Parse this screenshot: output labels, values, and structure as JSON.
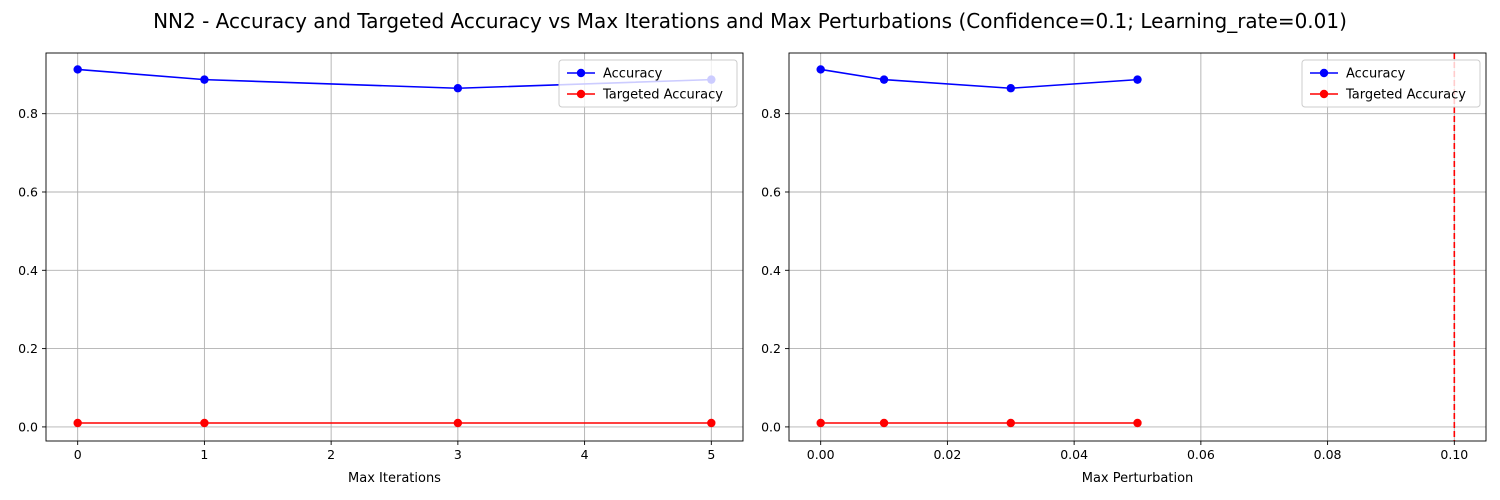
{
  "title": "NN2 - Accuracy and Targeted Accuracy vs Max Iterations and Max Perturbations (Confidence=0.1; Learning_rate=0.01)",
  "chart_data": [
    {
      "type": "line",
      "xlabel": "Max Iterations",
      "ylabel": "",
      "x": [
        0,
        1,
        3,
        5
      ],
      "xlim": [
        -0.25,
        5.25
      ],
      "ylim": [
        -0.036,
        0.955
      ],
      "xticks": [
        0,
        1,
        2,
        3,
        4,
        5
      ],
      "xtick_labels": [
        "0",
        "1",
        "2",
        "3",
        "4",
        "5"
      ],
      "yticks": [
        0.0,
        0.2,
        0.4,
        0.6,
        0.8
      ],
      "ytick_labels": [
        "0.0",
        "0.2",
        "0.4",
        "0.6",
        "0.8"
      ],
      "grid": true,
      "legend_position": "upper right",
      "series": [
        {
          "name": "Accuracy",
          "color": "#0000ff",
          "marker": "circle",
          "values": [
            0.913,
            0.887,
            0.865,
            0.887
          ]
        },
        {
          "name": "Targeted Accuracy",
          "color": "#ff0000",
          "marker": "circle",
          "values": [
            0.01,
            0.01,
            0.01,
            0.01
          ]
        }
      ]
    },
    {
      "type": "line",
      "xlabel": "Max Perturbation",
      "ylabel": "",
      "x": [
        0.0,
        0.01,
        0.03,
        0.05
      ],
      "xlim": [
        -0.005,
        0.105
      ],
      "ylim": [
        -0.036,
        0.955
      ],
      "xticks": [
        0.0,
        0.02,
        0.04,
        0.06,
        0.08,
        0.1
      ],
      "xtick_labels": [
        "0.00",
        "0.02",
        "0.04",
        "0.06",
        "0.08",
        "0.10"
      ],
      "yticks": [
        0.0,
        0.2,
        0.4,
        0.6,
        0.8
      ],
      "ytick_labels": [
        "0.0",
        "0.2",
        "0.4",
        "0.6",
        "0.8"
      ],
      "grid": true,
      "legend_position": "upper right",
      "vline": {
        "x": 0.1,
        "color": "#ff0000",
        "style": "dashed"
      },
      "series": [
        {
          "name": "Accuracy",
          "color": "#0000ff",
          "marker": "circle",
          "values": [
            0.913,
            0.887,
            0.865,
            0.887
          ]
        },
        {
          "name": "Targeted Accuracy",
          "color": "#ff0000",
          "marker": "circle",
          "values": [
            0.01,
            0.01,
            0.01,
            0.01
          ]
        }
      ]
    }
  ]
}
